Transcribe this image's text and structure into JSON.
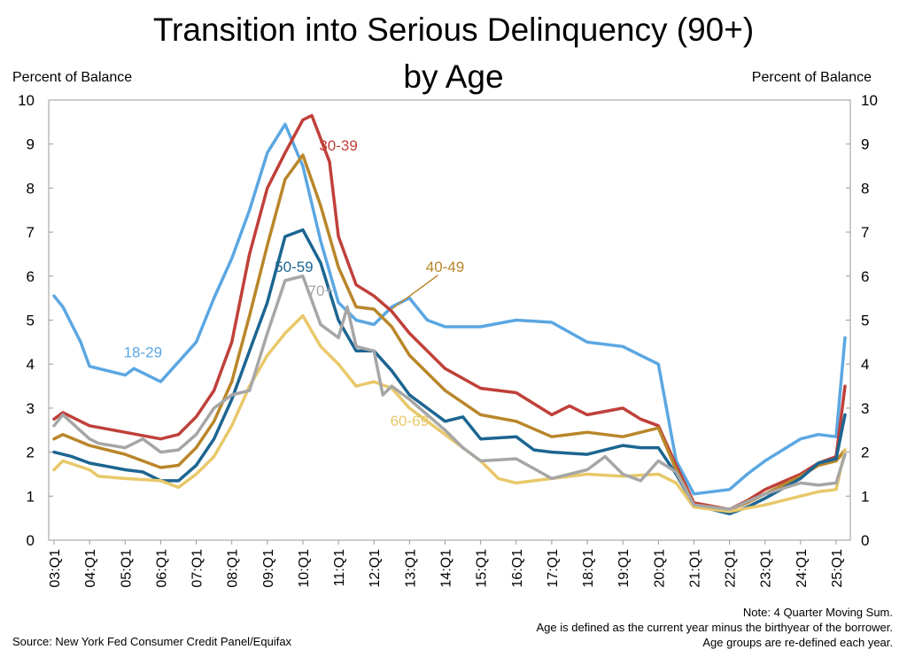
{
  "chart_data": {
    "type": "line",
    "title": "Transition into Serious Delinquency (90+)",
    "subtitle": "by Age",
    "ylabel": "Percent of Balance",
    "ylabel_right": "Percent of Balance",
    "ylim": [
      0,
      10
    ],
    "yticks": [
      "0",
      "1",
      "2",
      "3",
      "4",
      "5",
      "6",
      "7",
      "8",
      "9",
      "10"
    ],
    "x_tick_labels": [
      "03:Q1",
      "04:Q1",
      "05:Q1",
      "06:Q1",
      "07:Q1",
      "08:Q1",
      "09:Q1",
      "10:Q1",
      "11:Q1",
      "12:Q1",
      "13:Q1",
      "14:Q1",
      "15:Q1",
      "16:Q1",
      "17:Q1",
      "18:Q1",
      "19:Q1",
      "20:Q1",
      "21:Q1",
      "22:Q1",
      "23:Q1",
      "24:Q1",
      "25:Q1"
    ],
    "x_first": "03:Q1",
    "x_last": "25:Q2",
    "grid": false,
    "legend": "inline-labels",
    "series": [
      {
        "name": "18-29",
        "color": "#5ba7e2",
        "anchors": [
          [
            "03:Q1",
            5.55
          ],
          [
            "03:Q2",
            5.3
          ],
          [
            "03:Q4",
            4.5
          ],
          [
            "04:Q1",
            3.95
          ],
          [
            "05:Q1",
            3.75
          ],
          [
            "05:Q2",
            3.9
          ],
          [
            "06:Q1",
            3.6
          ],
          [
            "07:Q1",
            4.5
          ],
          [
            "07:Q3",
            5.5
          ],
          [
            "08:Q1",
            6.4
          ],
          [
            "08:Q3",
            7.5
          ],
          [
            "09:Q1",
            8.8
          ],
          [
            "09:Q3",
            9.45
          ],
          [
            "10:Q1",
            8.5
          ],
          [
            "10:Q3",
            6.8
          ],
          [
            "11:Q1",
            5.4
          ],
          [
            "11:Q3",
            5.0
          ],
          [
            "12:Q1",
            4.9
          ],
          [
            "12:Q3",
            5.3
          ],
          [
            "13:Q1",
            5.5
          ],
          [
            "13:Q3",
            5.0
          ],
          [
            "14:Q1",
            4.85
          ],
          [
            "15:Q1",
            4.85
          ],
          [
            "16:Q1",
            5.0
          ],
          [
            "17:Q1",
            4.95
          ],
          [
            "18:Q1",
            4.5
          ],
          [
            "19:Q1",
            4.4
          ],
          [
            "19:Q3",
            4.2
          ],
          [
            "20:Q1",
            4.0
          ],
          [
            "20:Q3",
            1.8
          ],
          [
            "21:Q1",
            1.05
          ],
          [
            "22:Q1",
            1.15
          ],
          [
            "22:Q3",
            1.5
          ],
          [
            "23:Q1",
            1.8
          ],
          [
            "24:Q1",
            2.3
          ],
          [
            "24:Q3",
            2.4
          ],
          [
            "25:Q1",
            2.35
          ],
          [
            "25:Q2",
            4.6
          ]
        ]
      },
      {
        "name": "30-39",
        "color": "#c0403a",
        "anchors": [
          [
            "03:Q1",
            2.75
          ],
          [
            "03:Q2",
            2.9
          ],
          [
            "04:Q1",
            2.6
          ],
          [
            "05:Q1",
            2.45
          ],
          [
            "06:Q1",
            2.3
          ],
          [
            "06:Q3",
            2.4
          ],
          [
            "07:Q1",
            2.8
          ],
          [
            "07:Q3",
            3.4
          ],
          [
            "08:Q1",
            4.5
          ],
          [
            "08:Q3",
            6.5
          ],
          [
            "09:Q1",
            8.0
          ],
          [
            "09:Q3",
            8.8
          ],
          [
            "10:Q1",
            9.55
          ],
          [
            "10:Q2",
            9.65
          ],
          [
            "10:Q4",
            8.6
          ],
          [
            "11:Q1",
            6.9
          ],
          [
            "11:Q3",
            5.8
          ],
          [
            "12:Q1",
            5.55
          ],
          [
            "12:Q3",
            5.2
          ],
          [
            "13:Q1",
            4.7
          ],
          [
            "14:Q1",
            3.9
          ],
          [
            "15:Q1",
            3.45
          ],
          [
            "16:Q1",
            3.35
          ],
          [
            "17:Q1",
            2.85
          ],
          [
            "17:Q3",
            3.05
          ],
          [
            "18:Q1",
            2.85
          ],
          [
            "19:Q1",
            3.0
          ],
          [
            "19:Q3",
            2.75
          ],
          [
            "20:Q1",
            2.6
          ],
          [
            "20:Q3",
            1.7
          ],
          [
            "21:Q1",
            0.85
          ],
          [
            "22:Q1",
            0.7
          ],
          [
            "22:Q3",
            0.9
          ],
          [
            "23:Q1",
            1.15
          ],
          [
            "24:Q1",
            1.5
          ],
          [
            "24:Q3",
            1.75
          ],
          [
            "25:Q1",
            1.9
          ],
          [
            "25:Q2",
            3.5
          ]
        ]
      },
      {
        "name": "40-49",
        "color": "#b9862a",
        "anchors": [
          [
            "03:Q1",
            2.3
          ],
          [
            "03:Q2",
            2.4
          ],
          [
            "04:Q1",
            2.15
          ],
          [
            "05:Q1",
            1.95
          ],
          [
            "06:Q1",
            1.65
          ],
          [
            "06:Q3",
            1.7
          ],
          [
            "07:Q1",
            2.1
          ],
          [
            "07:Q3",
            2.7
          ],
          [
            "08:Q1",
            3.6
          ],
          [
            "08:Q3",
            5.1
          ],
          [
            "09:Q1",
            6.7
          ],
          [
            "09:Q3",
            8.2
          ],
          [
            "10:Q1",
            8.75
          ],
          [
            "10:Q3",
            7.6
          ],
          [
            "11:Q1",
            6.2
          ],
          [
            "11:Q3",
            5.3
          ],
          [
            "12:Q1",
            5.25
          ],
          [
            "12:Q3",
            4.85
          ],
          [
            "13:Q1",
            4.2
          ],
          [
            "14:Q1",
            3.4
          ],
          [
            "15:Q1",
            2.85
          ],
          [
            "16:Q1",
            2.7
          ],
          [
            "17:Q1",
            2.35
          ],
          [
            "18:Q1",
            2.45
          ],
          [
            "19:Q1",
            2.35
          ],
          [
            "20:Q1",
            2.55
          ],
          [
            "20:Q3",
            1.6
          ],
          [
            "21:Q1",
            0.8
          ],
          [
            "22:Q1",
            0.7
          ],
          [
            "22:Q3",
            0.85
          ],
          [
            "23:Q1",
            1.05
          ],
          [
            "24:Q1",
            1.45
          ],
          [
            "24:Q3",
            1.7
          ],
          [
            "25:Q1",
            1.8
          ],
          [
            "25:Q2",
            2.05
          ]
        ]
      },
      {
        "name": "50-59",
        "color": "#1c6591",
        "anchors": [
          [
            "03:Q1",
            2.0
          ],
          [
            "03:Q3",
            1.9
          ],
          [
            "04:Q1",
            1.75
          ],
          [
            "05:Q1",
            1.6
          ],
          [
            "05:Q3",
            1.55
          ],
          [
            "06:Q1",
            1.35
          ],
          [
            "06:Q3",
            1.35
          ],
          [
            "07:Q1",
            1.7
          ],
          [
            "07:Q3",
            2.3
          ],
          [
            "08:Q1",
            3.2
          ],
          [
            "08:Q3",
            4.3
          ],
          [
            "09:Q1",
            5.4
          ],
          [
            "09:Q3",
            6.9
          ],
          [
            "10:Q1",
            7.05
          ],
          [
            "10:Q3",
            6.3
          ],
          [
            "11:Q1",
            5.0
          ],
          [
            "11:Q3",
            4.3
          ],
          [
            "12:Q1",
            4.3
          ],
          [
            "12:Q3",
            3.85
          ],
          [
            "13:Q1",
            3.3
          ],
          [
            "14:Q1",
            2.7
          ],
          [
            "14:Q3",
            2.8
          ],
          [
            "15:Q1",
            2.3
          ],
          [
            "16:Q1",
            2.35
          ],
          [
            "16:Q3",
            2.05
          ],
          [
            "17:Q1",
            2.0
          ],
          [
            "18:Q1",
            1.95
          ],
          [
            "19:Q1",
            2.15
          ],
          [
            "19:Q3",
            2.1
          ],
          [
            "20:Q1",
            2.1
          ],
          [
            "20:Q3",
            1.5
          ],
          [
            "21:Q1",
            0.8
          ],
          [
            "22:Q1",
            0.6
          ],
          [
            "22:Q3",
            0.75
          ],
          [
            "23:Q1",
            0.95
          ],
          [
            "24:Q1",
            1.4
          ],
          [
            "24:Q3",
            1.75
          ],
          [
            "25:Q1",
            1.85
          ],
          [
            "25:Q2",
            2.85
          ]
        ]
      },
      {
        "name": "60-69",
        "color": "#e8c86a",
        "anchors": [
          [
            "03:Q1",
            1.6
          ],
          [
            "03:Q2",
            1.8
          ],
          [
            "04:Q1",
            1.6
          ],
          [
            "04:Q2",
            1.45
          ],
          [
            "05:Q1",
            1.4
          ],
          [
            "06:Q1",
            1.35
          ],
          [
            "06:Q3",
            1.2
          ],
          [
            "07:Q1",
            1.5
          ],
          [
            "07:Q3",
            1.9
          ],
          [
            "08:Q1",
            2.6
          ],
          [
            "08:Q3",
            3.5
          ],
          [
            "09:Q1",
            4.2
          ],
          [
            "09:Q3",
            4.7
          ],
          [
            "10:Q1",
            5.1
          ],
          [
            "10:Q3",
            4.4
          ],
          [
            "11:Q1",
            4.0
          ],
          [
            "11:Q3",
            3.5
          ],
          [
            "12:Q1",
            3.6
          ],
          [
            "12:Q3",
            3.45
          ],
          [
            "13:Q1",
            3.0
          ],
          [
            "14:Q1",
            2.4
          ],
          [
            "15:Q1",
            1.8
          ],
          [
            "15:Q3",
            1.4
          ],
          [
            "16:Q1",
            1.3
          ],
          [
            "17:Q1",
            1.4
          ],
          [
            "18:Q1",
            1.5
          ],
          [
            "19:Q1",
            1.45
          ],
          [
            "20:Q1",
            1.5
          ],
          [
            "20:Q3",
            1.3
          ],
          [
            "21:Q1",
            0.75
          ],
          [
            "22:Q1",
            0.65
          ],
          [
            "23:Q1",
            0.8
          ],
          [
            "24:Q1",
            1.0
          ],
          [
            "24:Q3",
            1.1
          ],
          [
            "25:Q1",
            1.15
          ],
          [
            "25:Q2",
            2.05
          ]
        ]
      },
      {
        "name": "70+",
        "color": "#a6a6a6",
        "anchors": [
          [
            "03:Q1",
            2.6
          ],
          [
            "03:Q2",
            2.85
          ],
          [
            "04:Q1",
            2.3
          ],
          [
            "04:Q2",
            2.2
          ],
          [
            "05:Q1",
            2.1
          ],
          [
            "05:Q3",
            2.3
          ],
          [
            "06:Q1",
            2.0
          ],
          [
            "06:Q3",
            2.05
          ],
          [
            "07:Q1",
            2.4
          ],
          [
            "07:Q3",
            3.0
          ],
          [
            "08:Q1",
            3.3
          ],
          [
            "08:Q3",
            3.4
          ],
          [
            "09:Q1",
            4.7
          ],
          [
            "09:Q3",
            5.9
          ],
          [
            "10:Q1",
            6.0
          ],
          [
            "10:Q3",
            4.9
          ],
          [
            "11:Q1",
            4.6
          ],
          [
            "11:Q2",
            5.3
          ],
          [
            "11:Q3",
            4.4
          ],
          [
            "12:Q1",
            4.3
          ],
          [
            "12:Q2",
            3.3
          ],
          [
            "12:Q3",
            3.5
          ],
          [
            "13:Q1",
            3.2
          ],
          [
            "14:Q1",
            2.5
          ],
          [
            "14:Q3",
            2.1
          ],
          [
            "15:Q1",
            1.8
          ],
          [
            "16:Q1",
            1.85
          ],
          [
            "17:Q1",
            1.4
          ],
          [
            "18:Q1",
            1.6
          ],
          [
            "18:Q3",
            1.9
          ],
          [
            "19:Q1",
            1.5
          ],
          [
            "19:Q3",
            1.35
          ],
          [
            "20:Q1",
            1.8
          ],
          [
            "20:Q3",
            1.55
          ],
          [
            "21:Q1",
            0.8
          ],
          [
            "22:Q1",
            0.7
          ],
          [
            "23:Q1",
            1.05
          ],
          [
            "24:Q1",
            1.3
          ],
          [
            "24:Q3",
            1.25
          ],
          [
            "25:Q1",
            1.3
          ],
          [
            "25:Q2",
            1.95
          ]
        ]
      }
    ],
    "annotations": [
      {
        "text": "30-39",
        "series": "30-39",
        "at": [
          "11:Q1",
          8.85
        ]
      },
      {
        "text": "40-49",
        "series": "40-49",
        "at": [
          "14:Q1",
          6.1
        ],
        "leader_to": [
          "12:Q3",
          5.25
        ]
      },
      {
        "text": "50-59",
        "series": "50-59",
        "at": [
          "09:Q4",
          6.1
        ]
      },
      {
        "text": "70+",
        "series": "70+",
        "at": [
          "10:Q3",
          5.55
        ]
      },
      {
        "text": "18-29",
        "series": "18-29",
        "at": [
          "05:Q3",
          4.15
        ]
      },
      {
        "text": "60-69",
        "series": "60-69",
        "at": [
          "13:Q1",
          2.6
        ]
      }
    ]
  },
  "notes": {
    "note1": "Note: 4 Quarter Moving Sum.",
    "note2": "Age is defined as the current year minus the birthyear of the borrower.",
    "note3": "Age groups are re-defined each year."
  },
  "source": "Source: New York Fed Consumer Credit Panel/Equifax"
}
